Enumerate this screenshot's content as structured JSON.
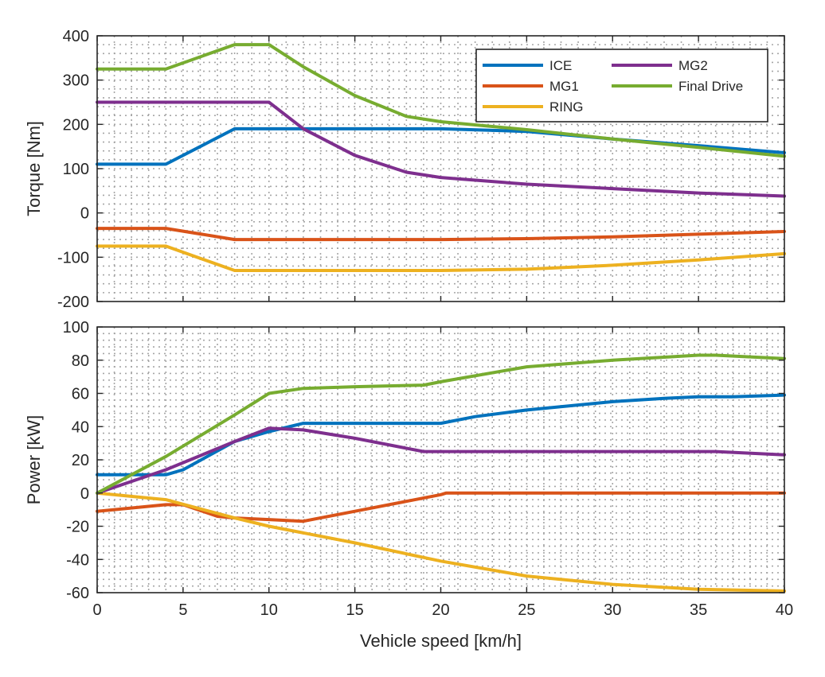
{
  "colors": {
    "ICE": "#0072BD",
    "MG1": "#D95319",
    "RING": "#EDB120",
    "MG2": "#7E2F8E",
    "Final Drive": "#77AC30",
    "axis": "#262626",
    "grid": "#a6a6a6"
  },
  "chart_data": [
    {
      "type": "line",
      "title": "",
      "xlabel": "",
      "ylabel": "Torque [Nm]",
      "xlim": [
        0,
        40
      ],
      "ylim": [
        -200,
        400
      ],
      "xticks": [
        0,
        5,
        10,
        15,
        20,
        25,
        30,
        35,
        40
      ],
      "yticks": [
        -200,
        -100,
        0,
        100,
        200,
        300,
        400
      ],
      "ytick_labels": [
        "-200",
        "-100",
        "0",
        "100",
        "200",
        "300",
        "400"
      ],
      "grid": true,
      "legend": {
        "position": "top-right",
        "columns": 2,
        "order": [
          "ICE",
          "MG2",
          "MG1",
          "Final Drive",
          "RING"
        ]
      },
      "series": [
        {
          "name": "ICE",
          "x": [
            0,
            4,
            8,
            10,
            20,
            25,
            30,
            35,
            40
          ],
          "y": [
            110,
            110,
            190,
            190,
            190,
            184,
            167,
            152,
            136
          ]
        },
        {
          "name": "MG1",
          "x": [
            0,
            4,
            8,
            10,
            20,
            25,
            30,
            35,
            40
          ],
          "y": [
            -35,
            -35,
            -60,
            -60,
            -60,
            -58,
            -54,
            -48,
            -42
          ]
        },
        {
          "name": "RING",
          "x": [
            0,
            4,
            8,
            10,
            20,
            25,
            30,
            35,
            40
          ],
          "y": [
            -75,
            -75,
            -130,
            -130,
            -130,
            -127,
            -118,
            -106,
            -92
          ]
        },
        {
          "name": "MG2",
          "x": [
            0,
            4,
            8,
            10,
            12,
            15,
            18,
            20,
            25,
            30,
            35,
            40
          ],
          "y": [
            250,
            250,
            250,
            250,
            190,
            130,
            92,
            80,
            65,
            55,
            45,
            38
          ]
        },
        {
          "name": "Final Drive",
          "x": [
            0,
            4,
            8,
            10,
            12,
            15,
            18,
            20,
            25,
            30,
            35,
            40
          ],
          "y": [
            325,
            325,
            380,
            380,
            330,
            265,
            218,
            206,
            188,
            167,
            148,
            128
          ]
        }
      ]
    },
    {
      "type": "line",
      "title": "",
      "xlabel": "Vehicle speed [km/h]",
      "ylabel": "Power [kW]",
      "xlim": [
        0,
        40
      ],
      "ylim": [
        -60,
        100
      ],
      "xticks": [
        0,
        5,
        10,
        15,
        20,
        25,
        30,
        35,
        40
      ],
      "xtick_labels": [
        "0",
        "5",
        "10",
        "15",
        "20",
        "25",
        "30",
        "35",
        "40"
      ],
      "yticks": [
        -60,
        -40,
        -20,
        0,
        20,
        40,
        60,
        80,
        100
      ],
      "ytick_labels": [
        "-60",
        "-40",
        "-20",
        "0",
        "20",
        "40",
        "60",
        "80",
        "100"
      ],
      "grid": true,
      "series": [
        {
          "name": "ICE",
          "x": [
            0,
            4,
            5,
            8,
            10,
            12,
            15,
            20,
            22,
            25,
            30,
            33,
            35,
            37,
            40
          ],
          "y": [
            11,
            11,
            14,
            31,
            37,
            42,
            42,
            42,
            46,
            50,
            55,
            57,
            58,
            58,
            59
          ]
        },
        {
          "name": "MG1",
          "x": [
            0,
            4,
            5,
            7,
            8,
            10,
            12,
            15,
            20,
            20.3,
            25,
            30,
            35,
            40
          ],
          "y": [
            -11,
            -7,
            -7,
            -14,
            -15,
            -16,
            -17,
            -11,
            -1,
            0,
            0,
            0,
            0,
            0
          ]
        },
        {
          "name": "RING",
          "x": [
            0,
            4,
            8,
            10,
            15,
            20,
            25,
            30,
            35,
            40
          ],
          "y": [
            0,
            -4,
            -15,
            -20,
            -30,
            -41,
            -50,
            -55,
            -58,
            -59
          ]
        },
        {
          "name": "MG2",
          "x": [
            0,
            4,
            8,
            10,
            12,
            15,
            19,
            20,
            25,
            30,
            35,
            36,
            40
          ],
          "y": [
            0,
            14,
            31,
            39,
            38,
            33,
            25,
            25,
            25,
            25,
            25,
            25,
            23
          ]
        },
        {
          "name": "Final Drive",
          "x": [
            0,
            4,
            8,
            10,
            12,
            15,
            19,
            20,
            25,
            30,
            35,
            36,
            40
          ],
          "y": [
            0,
            22,
            47,
            60,
            63,
            64,
            65,
            67,
            76,
            80,
            83,
            83,
            81
          ]
        }
      ]
    }
  ]
}
